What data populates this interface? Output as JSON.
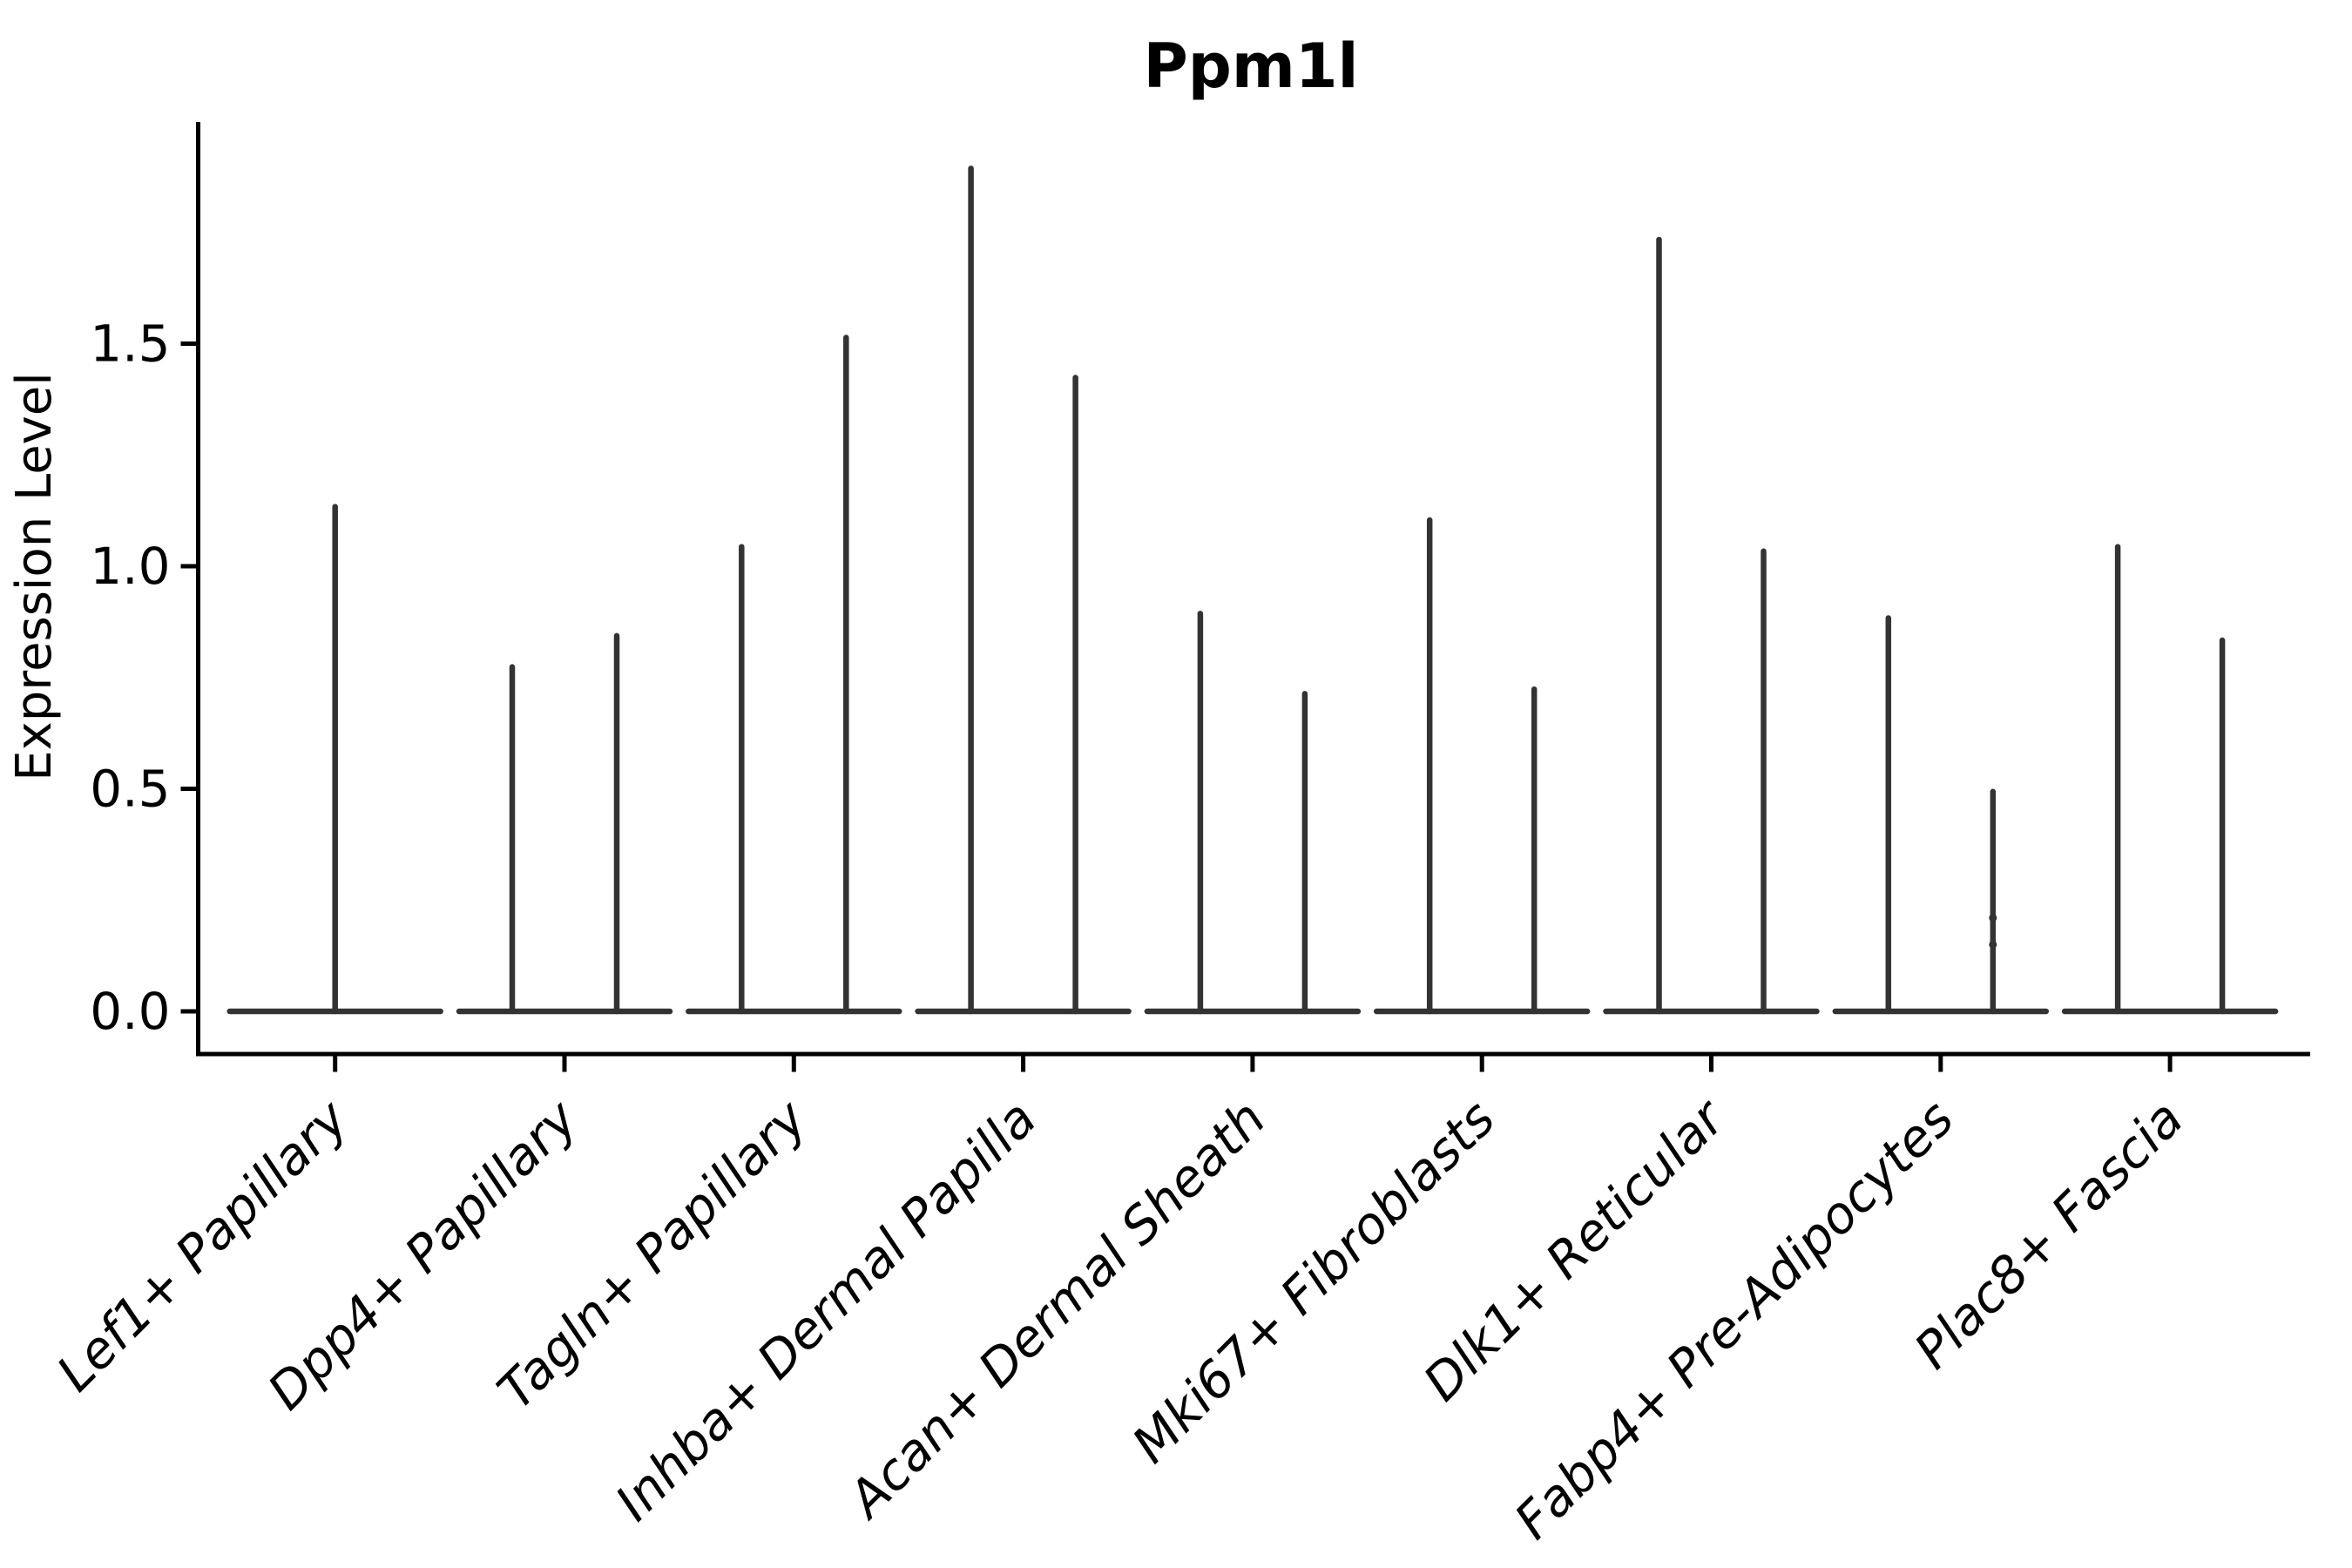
{
  "chart_data": {
    "type": "violin",
    "title": "Ppm1l",
    "ylabel": "Expression Level",
    "xlabel": "",
    "grid": false,
    "legend": "none",
    "yticks": [
      0.0,
      0.5,
      1.0,
      1.5
    ],
    "ytick_labels": [
      "0.0",
      "0.5",
      "1.0",
      "1.5"
    ],
    "ylim": [
      -0.1,
      2.0
    ],
    "categories": [
      "Lef1+ Papillary",
      "Dpp4+ Papillary",
      "Tagln+ Papillary",
      "Inhba+ Dermal Papilla",
      "Acan+ Dermal Sheath",
      "Mki67+ Fibroblasts",
      "Dlk1+ Reticular",
      "Fabp4+ Pre-Adipocytes",
      "Plac8+ Fascia"
    ],
    "description": "Each category shows very thin violin(s): a flat body at expression 0 with needle-like spikes whose tops are the maxima listed below. Category 1 has a single centered spike; all others have a left and right spike.",
    "violins": [
      {
        "category": "Lef1+ Papillary",
        "spike_maxima": [
          1.14
        ],
        "dots": []
      },
      {
        "category": "Dpp4+ Papillary",
        "spike_maxima": [
          0.78,
          0.85
        ],
        "dots": []
      },
      {
        "category": "Tagln+ Papillary",
        "spike_maxima": [
          1.05,
          1.52
        ],
        "dots": []
      },
      {
        "category": "Inhba+ Dermal Papilla",
        "spike_maxima": [
          1.9,
          1.43
        ],
        "dots": []
      },
      {
        "category": "Acan+ Dermal Sheath",
        "spike_maxima": [
          0.9,
          0.72
        ],
        "dots": []
      },
      {
        "category": "Mki67+ Fibroblasts",
        "spike_maxima": [
          1.11,
          0.73
        ],
        "dots": []
      },
      {
        "category": "Dlk1+ Reticular",
        "spike_maxima": [
          1.74,
          1.04
        ],
        "dots": []
      },
      {
        "category": "Fabp4+ Pre-Adipocytes",
        "spike_maxima": [
          0.89,
          0.5
        ],
        "dots": [
          0.15,
          0.21
        ]
      },
      {
        "category": "Plac8+ Fascia",
        "spike_maxima": [
          1.05,
          0.84
        ],
        "dots": []
      }
    ],
    "colors": {
      "violin": "#333333",
      "axis": "#000000",
      "text": "#000000",
      "background": "#ffffff"
    }
  }
}
